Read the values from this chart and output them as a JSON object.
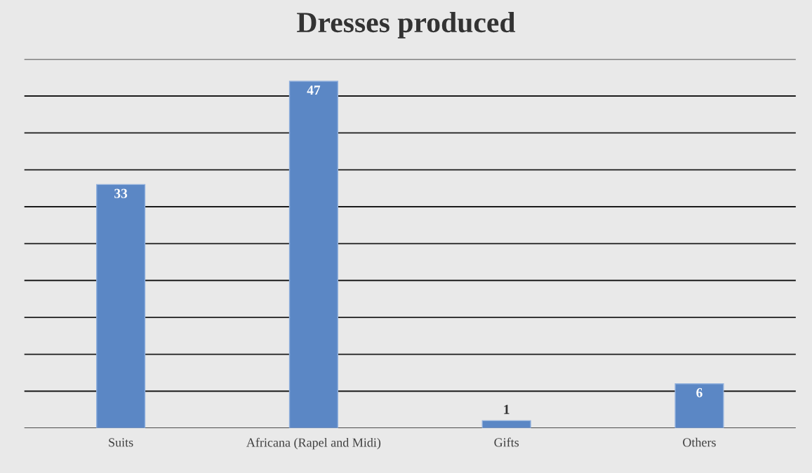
{
  "chart_data": {
    "type": "bar",
    "title": "Dresses produced",
    "categories": [
      "Suits",
      "Africana (Rapel and Midi)",
      "Gifts",
      "Others"
    ],
    "values": [
      33,
      47,
      1,
      6
    ],
    "color": "#5b87c5",
    "ylim": [
      0,
      50
    ],
    "yticks": [
      {
        "value": 0,
        "label": null
      },
      {
        "value": 5,
        "label": null
      },
      {
        "value": 10,
        "label": null
      },
      {
        "value": 15,
        "label": null
      },
      {
        "value": 20,
        "label": null
      },
      {
        "value": 25,
        "label": null
      },
      {
        "value": 30,
        "label": null
      },
      {
        "value": 35,
        "label": null
      },
      {
        "value": 40,
        "label": null
      },
      {
        "value": 45,
        "label": null
      },
      {
        "value": 50,
        "label": null
      }
    ],
    "grid": "y",
    "data_labels": true
  }
}
